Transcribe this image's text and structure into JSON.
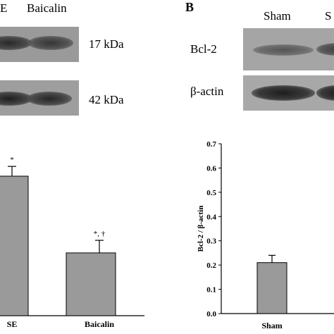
{
  "panel_a": {
    "lane_headers": [
      "E",
      "Baicalin"
    ],
    "blot_sizes": [
      "17 kDa",
      "42 kDa"
    ]
  },
  "panel_b": {
    "panel_letter": "B",
    "lane_headers": [
      "Sham",
      "S"
    ],
    "blot_labels": [
      "Bcl-2",
      "β-actin"
    ]
  },
  "chart_data": [
    {
      "type": "bar",
      "panel": "A",
      "categories": [
        "SE",
        "Baicalin"
      ],
      "values": [
        1.0,
        0.45
      ],
      "errors": [
        0.07,
        0.09
      ],
      "annotations": [
        "*",
        "*, †"
      ],
      "bar_color": "#9a9a9a"
    },
    {
      "type": "bar",
      "panel": "B",
      "title": "",
      "categories": [
        "Sham"
      ],
      "values": [
        0.21
      ],
      "errors": [
        0.03
      ],
      "ylabel": "Bcl-2 / β-actin",
      "ylim": [
        0,
        0.7
      ],
      "yticks": [
        "0.0",
        "0.1",
        "0.2",
        "0.3",
        "0.4",
        "0.5",
        "0.6",
        "0.7"
      ],
      "bar_color": "#9a9a9a"
    }
  ]
}
